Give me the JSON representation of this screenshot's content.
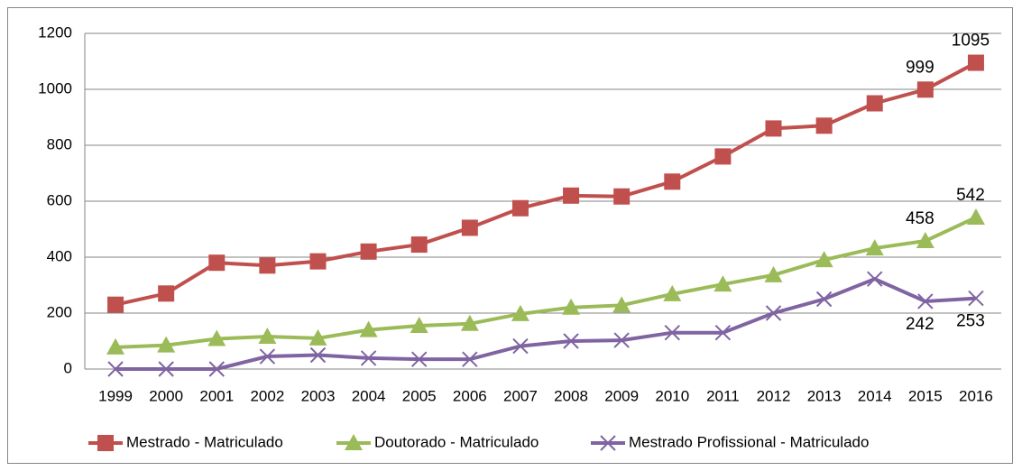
{
  "chart_data": {
    "type": "line",
    "categories": [
      "1999",
      "2000",
      "2001",
      "2002",
      "2003",
      "2004",
      "2005",
      "2006",
      "2007",
      "2008",
      "2009",
      "2010",
      "2011",
      "2012",
      "2013",
      "2014",
      "2015",
      "2016"
    ],
    "series": [
      {
        "name": "Mestrado - Matriculado",
        "color": "#c0504d",
        "marker": "square",
        "label_position": "above",
        "values": [
          230,
          270,
          380,
          370,
          385,
          420,
          445,
          505,
          575,
          620,
          617,
          670,
          760,
          860,
          870,
          950,
          999,
          1095
        ]
      },
      {
        "name": "Doutorado - Matriculado",
        "color": "#9bbb59",
        "marker": "triangle",
        "label_position": "above",
        "values": [
          78,
          85,
          108,
          116,
          110,
          140,
          155,
          162,
          197,
          220,
          228,
          268,
          303,
          336,
          390,
          432,
          458,
          542
        ]
      },
      {
        "name": "Mestrado Profissional - Matriculado",
        "color": "#8064a2",
        "marker": "x",
        "label_position": "below",
        "values": [
          0,
          0,
          0,
          45,
          50,
          39,
          35,
          35,
          82,
          100,
          103,
          130,
          130,
          200,
          250,
          322,
          242,
          253
        ]
      }
    ],
    "data_labels": [
      16,
      17
    ],
    "ylim": [
      0,
      1200
    ],
    "yticks": [
      0,
      200,
      400,
      600,
      800,
      1000,
      1200
    ],
    "grid": true,
    "legend": "bottom"
  }
}
